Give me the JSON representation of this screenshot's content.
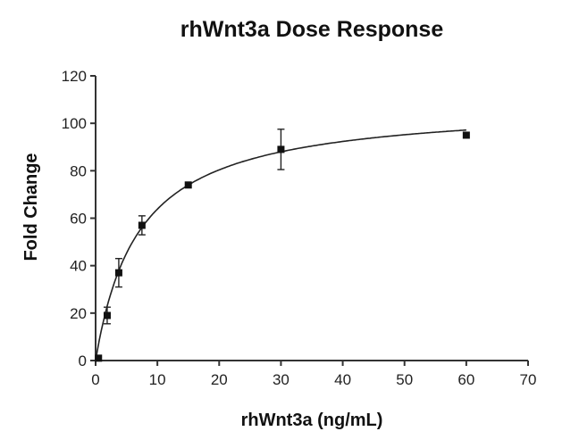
{
  "chart_data": {
    "type": "scatter",
    "title": "rhWnt3a Dose Response",
    "xlabel": "rhWnt3a (ng/mL)",
    "ylabel": "Fold Change",
    "xlim": [
      0,
      70
    ],
    "ylim": [
      0,
      120
    ],
    "xticks": [
      0,
      10,
      20,
      30,
      40,
      50,
      60,
      70
    ],
    "yticks": [
      0,
      20,
      40,
      60,
      80,
      100,
      120
    ],
    "grid": false,
    "marker": "square",
    "color": "#111111",
    "points": [
      {
        "x": 0.47,
        "y": 1,
        "err": 0
      },
      {
        "x": 1.875,
        "y": 19,
        "err": 3.5
      },
      {
        "x": 3.75,
        "y": 37,
        "err": 6
      },
      {
        "x": 7.5,
        "y": 57,
        "err": 4
      },
      {
        "x": 15,
        "y": 74,
        "err": 0
      },
      {
        "x": 30,
        "y": 89,
        "err": 8.5
      },
      {
        "x": 60,
        "y": 95,
        "err": 0
      }
    ],
    "fit": {
      "model": "hyperbola",
      "Bmax": 108.5,
      "Kd": 7.0,
      "x_range": [
        0,
        60
      ]
    }
  }
}
